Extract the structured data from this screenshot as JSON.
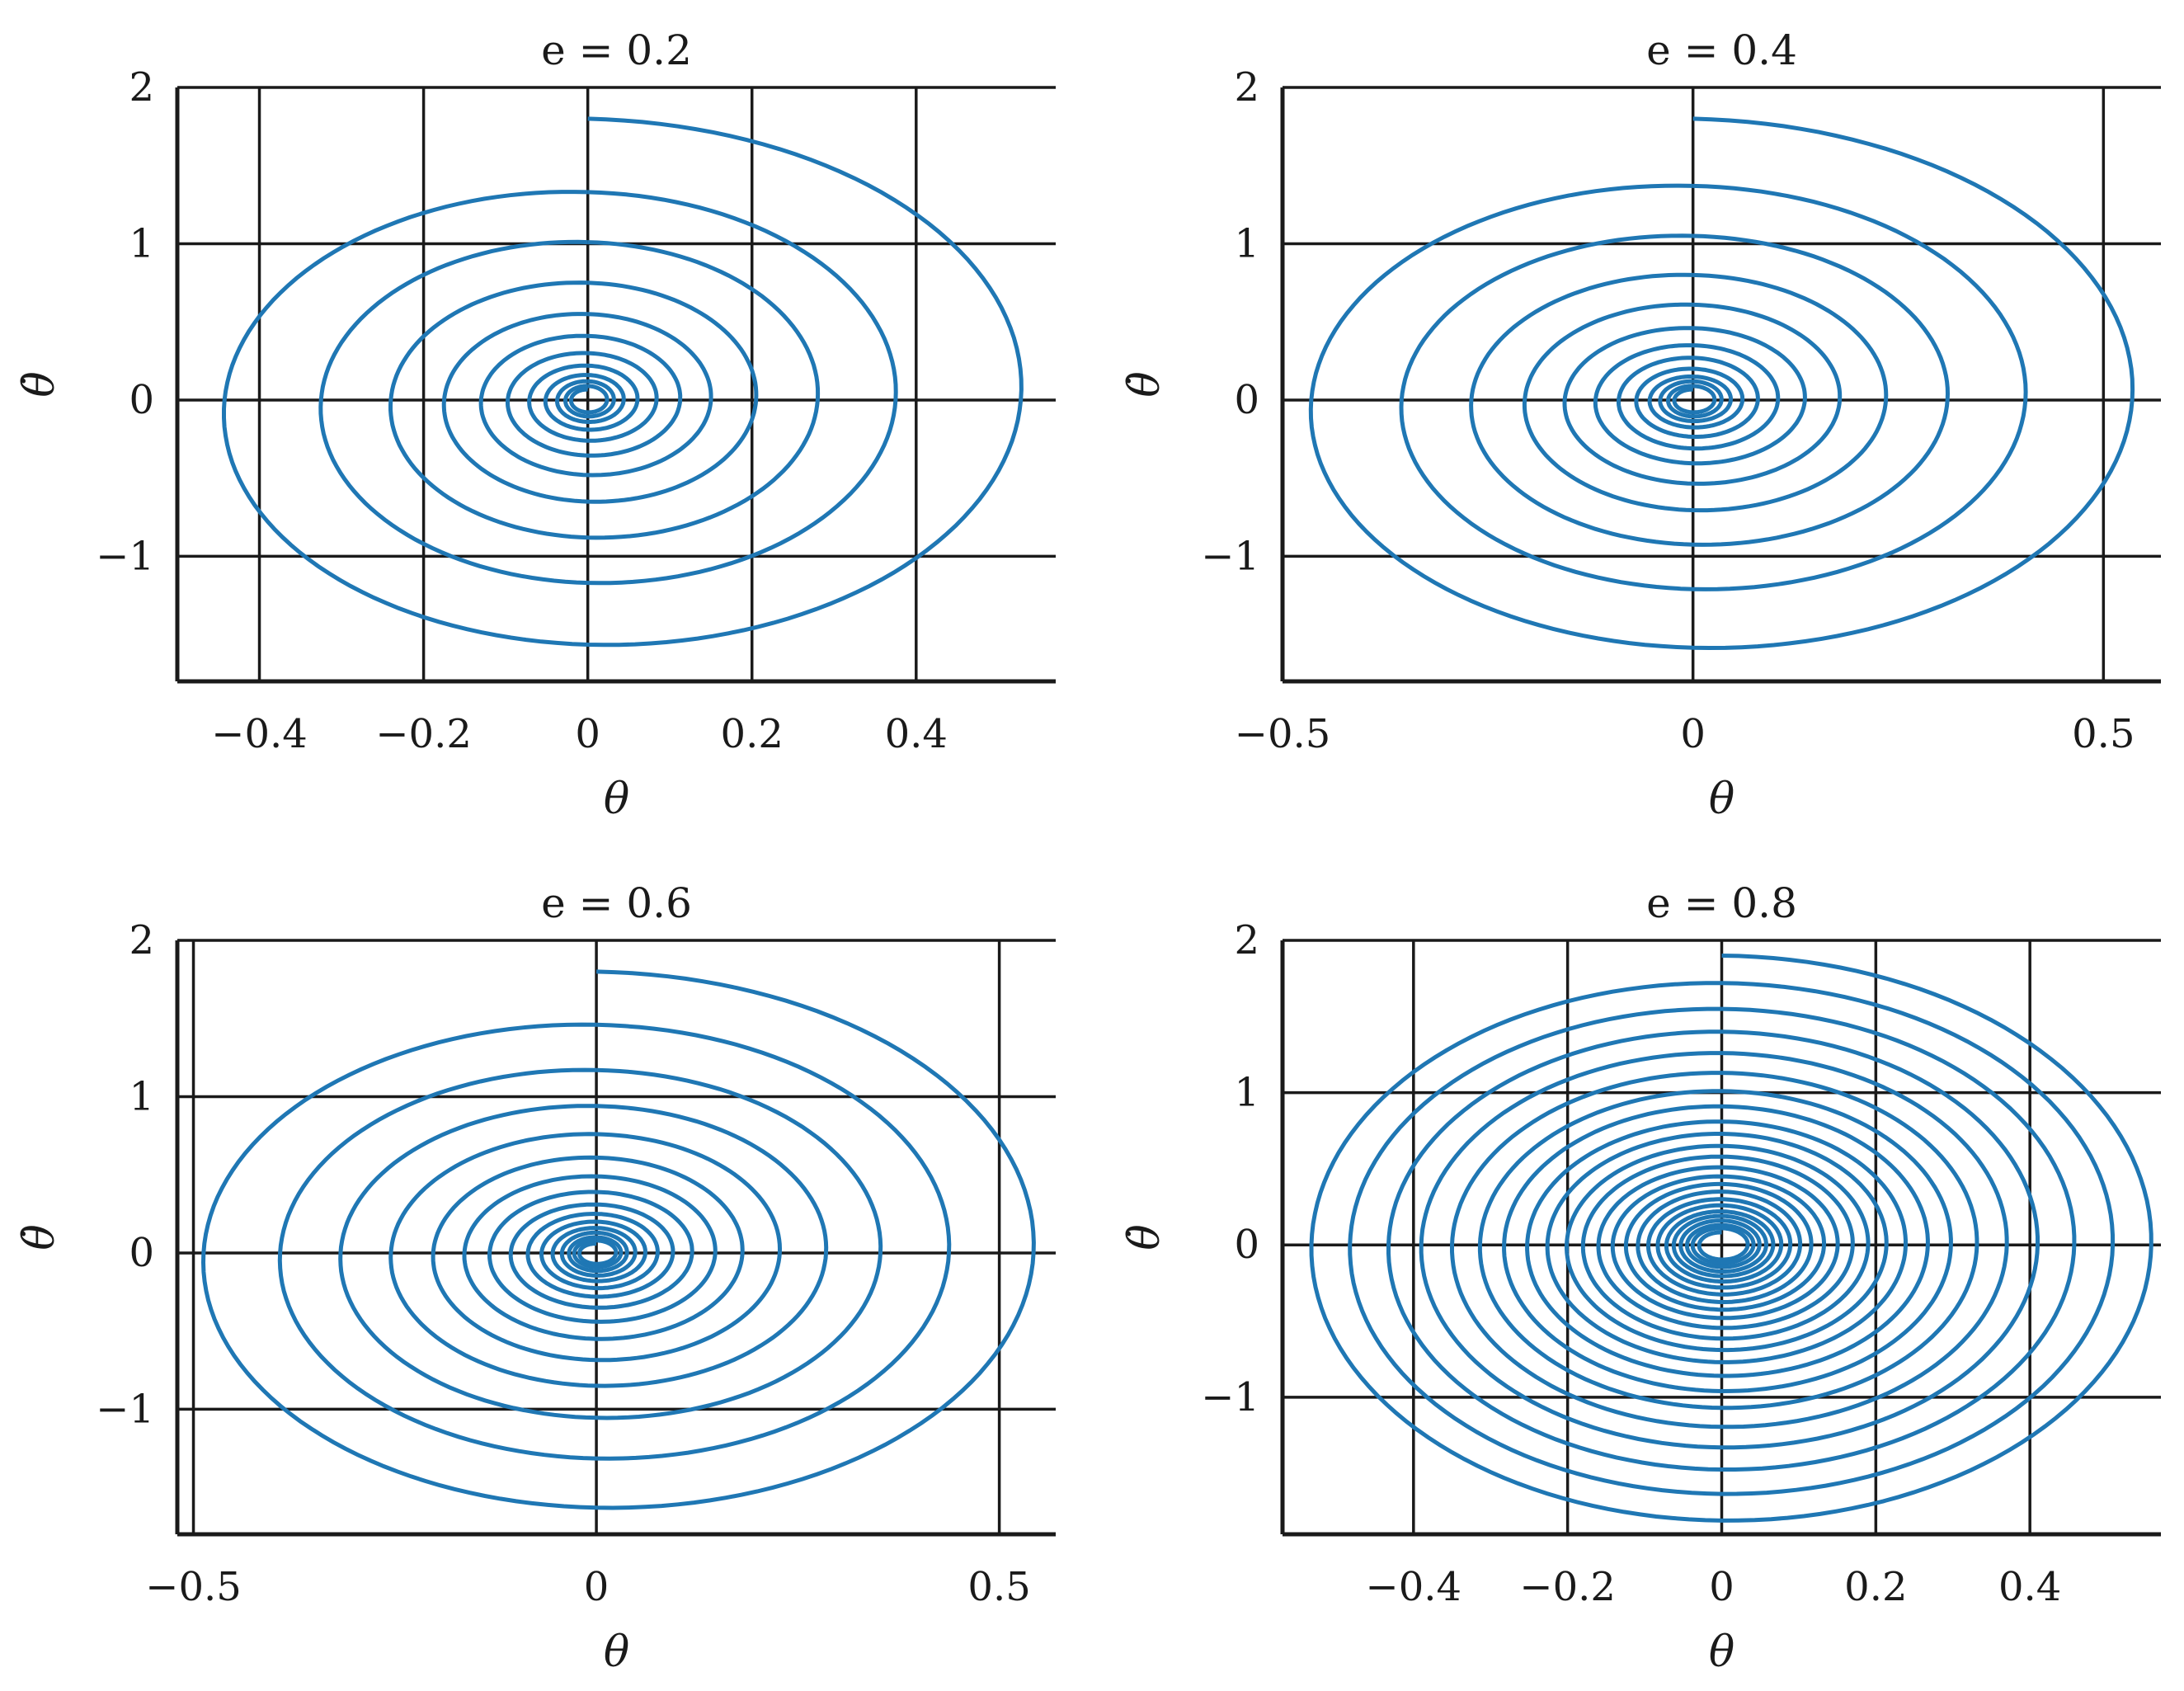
{
  "figure": {
    "line_color": "#1f77b4",
    "grid_color": "#1a1a1a",
    "background": "#ffffff"
  },
  "chart_data": [
    {
      "type": "line",
      "title": "e = 0.2",
      "xlabel": "θ",
      "ylabel": "θ̇",
      "e": 0.2,
      "xlim": [
        -0.5,
        0.57
      ],
      "ylim": [
        -1.8,
        2
      ],
      "xticks": [
        -0.4,
        -0.2,
        0,
        0.2,
        0.4
      ],
      "xtick_labels": [
        "−0.4",
        "−0.2",
        "0",
        "0.2",
        "0.4"
      ],
      "yticks": [
        -1,
        0,
        1,
        2
      ],
      "ytick_labels": [
        "−1",
        "0",
        "1",
        "2"
      ],
      "grid": true,
      "series": [
        {
          "description": "phase-portrait spiral, outer orbit amplitudes (θ, θ̇)",
          "amplitudes": [
            [
              0.57,
              1.8
            ],
            [
              0.4,
              1.33
            ],
            [
              0.3,
              1.01
            ],
            [
              0.22,
              0.75
            ],
            [
              0.16,
              0.55
            ],
            [
              0.12,
              0.41
            ],
            [
              0.09,
              0.3
            ],
            [
              0.065,
              0.22
            ],
            [
              0.047,
              0.16
            ],
            [
              0.034,
              0.12
            ],
            [
              0.025,
              0.09
            ]
          ],
          "jump_at_theta_zero": true
        }
      ]
    },
    {
      "type": "line",
      "title": "e = 0.4",
      "xlabel": "θ",
      "ylabel": "θ̇",
      "e": 0.4,
      "xlim": [
        -0.5,
        0.57
      ],
      "ylim": [
        -1.8,
        2
      ],
      "xticks": [
        -0.5,
        0,
        0.5
      ],
      "xtick_labels": [
        "−0.5",
        "0",
        "0.5"
      ],
      "yticks": [
        -1,
        0,
        1,
        2
      ],
      "ytick_labels": [
        "−1",
        "0",
        "1",
        "2"
      ],
      "grid": true,
      "series": [
        {
          "description": "phase-portrait spiral, outer orbit amplitudes (θ, θ̇)",
          "amplitudes": [
            [
              0.57,
              1.8
            ],
            [
              0.43,
              1.37
            ],
            [
              0.33,
              1.05
            ],
            [
              0.25,
              0.8
            ],
            [
              0.19,
              0.61
            ],
            [
              0.145,
              0.46
            ],
            [
              0.11,
              0.35
            ],
            [
              0.084,
              0.27
            ],
            [
              0.064,
              0.2
            ],
            [
              0.049,
              0.15
            ],
            [
              0.037,
              0.12
            ],
            [
              0.028,
              0.09
            ]
          ],
          "jump_at_theta_zero": true
        }
      ]
    },
    {
      "type": "line",
      "title": "e = 0.6",
      "xlabel": "θ",
      "ylabel": "θ̇",
      "e": 0.6,
      "xlim": [
        -0.52,
        0.57
      ],
      "ylim": [
        -1.8,
        2
      ],
      "xticks": [
        -0.5,
        0,
        0.5
      ],
      "xtick_labels": [
        "−0.5",
        "0",
        "0.5"
      ],
      "yticks": [
        -1,
        0,
        1,
        2
      ],
      "ytick_labels": [
        "−1",
        "0",
        "1",
        "2"
      ],
      "grid": true,
      "series": [
        {
          "description": "phase-portrait spiral, outer orbit amplitudes (θ, θ̇)",
          "amplitudes": [
            [
              0.57,
              1.8
            ],
            [
              0.46,
              1.46
            ],
            [
              0.37,
              1.17
            ],
            [
              0.3,
              0.94
            ],
            [
              0.24,
              0.76
            ],
            [
              0.19,
              0.61
            ],
            [
              0.155,
              0.49
            ],
            [
              0.125,
              0.39
            ],
            [
              0.1,
              0.31
            ],
            [
              0.08,
              0.25
            ],
            [
              0.064,
              0.2
            ],
            [
              0.051,
              0.16
            ],
            [
              0.04,
              0.13
            ],
            [
              0.032,
              0.1
            ],
            [
              0.026,
              0.08
            ]
          ],
          "jump_at_theta_zero": true
        }
      ]
    },
    {
      "type": "line",
      "title": "e = 0.8",
      "xlabel": "θ",
      "ylabel": "θ̇",
      "e": 0.8,
      "xlim": [
        -0.57,
        0.57
      ],
      "ylim": [
        -1.9,
        2
      ],
      "xticks": [
        -0.4,
        -0.2,
        0,
        0.2,
        0.4
      ],
      "xtick_labels": [
        "−0.4",
        "−0.2",
        "0",
        "0.2",
        "0.4"
      ],
      "yticks": [
        -1,
        0,
        1,
        2
      ],
      "ytick_labels": [
        "−1",
        "0",
        "1",
        "2"
      ],
      "grid": true,
      "series": [
        {
          "description": "phase-portrait spiral, outer orbit amplitudes (θ, θ̇)",
          "amplitudes": [
            [
              0.57,
              1.9
            ],
            [
              0.52,
              1.72
            ],
            [
              0.47,
              1.55
            ],
            [
              0.42,
              1.4
            ],
            [
              0.38,
              1.26
            ],
            [
              0.34,
              1.13
            ],
            [
              0.305,
              1.01
            ],
            [
              0.275,
              0.91
            ],
            [
              0.245,
              0.81
            ],
            [
              0.22,
              0.73
            ],
            [
              0.195,
              0.65
            ],
            [
              0.175,
              0.58
            ],
            [
              0.155,
              0.51
            ],
            [
              0.137,
              0.45
            ],
            [
              0.12,
              0.4
            ],
            [
              0.105,
              0.35
            ],
            [
              0.092,
              0.3
            ],
            [
              0.08,
              0.26
            ],
            [
              0.069,
              0.22
            ],
            [
              0.06,
              0.19
            ],
            [
              0.051,
              0.16
            ],
            [
              0.043,
              0.13
            ],
            [
              0.036,
              0.11
            ]
          ],
          "jump_at_theta_zero": true
        }
      ]
    }
  ]
}
